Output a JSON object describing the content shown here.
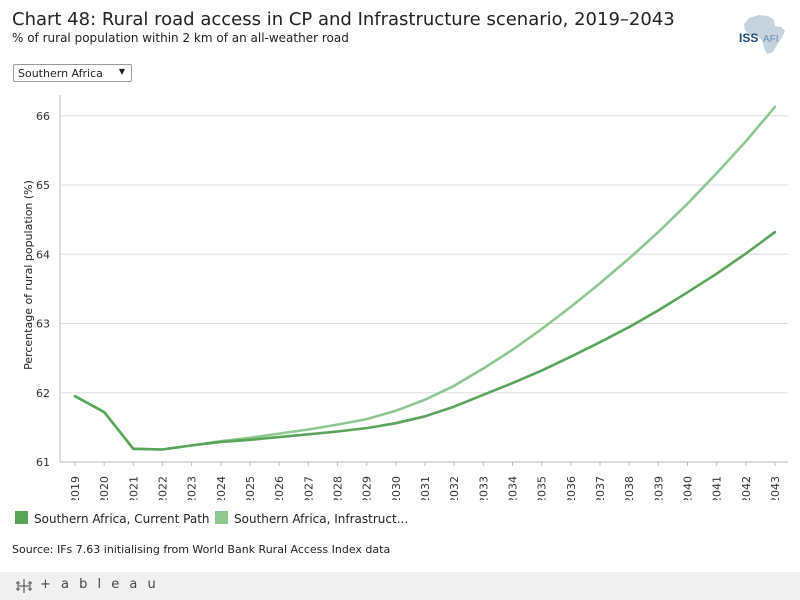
{
  "header": {
    "title": "Chart 48: Rural road access in CP and Infrastructure scenario, 2019–2043",
    "subtitle": "% of rural population within 2 km of an all-weather road"
  },
  "logo": {
    "text": "ISS",
    "suffix": "AFI",
    "icon": "africa-map-icon"
  },
  "filter": {
    "selected": "Southern Africa",
    "icon": "dropdown-arrow-icon"
  },
  "colors": {
    "current_path": "#59a65a",
    "infrastructure": "#8cc88f",
    "grid": "#dddddd",
    "axis": "#bbbbbb"
  },
  "chart_data": {
    "type": "line",
    "title": "Chart 48: Rural road access in CP and Infrastructure scenario, 2019–2043",
    "xlabel": "",
    "ylabel": "Percentage of rural population (%)",
    "ylim": [
      61,
      66.3
    ],
    "yticks": [
      "61",
      "62",
      "63",
      "64",
      "65",
      "66"
    ],
    "x": [
      "2019",
      "2020",
      "2021",
      "2022",
      "2023",
      "2024",
      "2025",
      "2026",
      "2027",
      "2028",
      "2029",
      "2030",
      "2031",
      "2032",
      "2033",
      "2034",
      "2035",
      "2036",
      "2037",
      "2038",
      "2039",
      "2040",
      "2041",
      "2042",
      "2043"
    ],
    "series": [
      {
        "name": "Southern Africa, Current Path",
        "values": [
          61.95,
          61.72,
          61.19,
          61.18,
          61.24,
          61.29,
          61.32,
          61.36,
          61.4,
          61.44,
          61.49,
          61.56,
          61.66,
          61.8,
          61.97,
          62.14,
          62.32,
          62.52,
          62.73,
          62.95,
          63.19,
          63.45,
          63.72,
          64.01,
          64.32
        ]
      },
      {
        "name": "Southern Africa, Infrastructure",
        "values": [
          61.95,
          61.72,
          61.19,
          61.18,
          61.24,
          61.3,
          61.35,
          61.41,
          61.47,
          61.54,
          61.62,
          61.74,
          61.9,
          62.1,
          62.35,
          62.62,
          62.92,
          63.24,
          63.58,
          63.94,
          64.32,
          64.73,
          65.17,
          65.63,
          66.13
        ]
      }
    ],
    "legend": [
      "Southern Africa, Current Path",
      "Southern Africa, Infrastruct..."
    ]
  },
  "source": "Source: IFs 7.63 initialising from World Bank Rural Access Index data",
  "footer": {
    "brand": "+ a b l e a u",
    "icon": "tableau-logo-icon"
  }
}
